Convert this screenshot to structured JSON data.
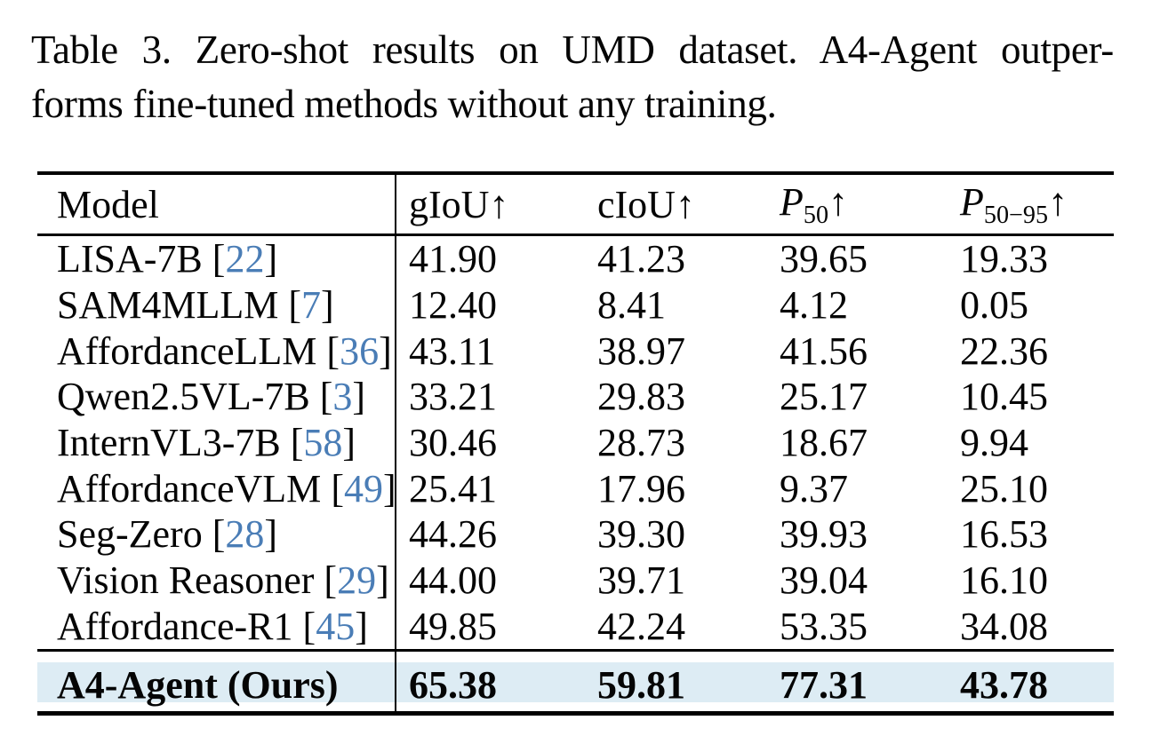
{
  "caption": {
    "line1": "Table 3. Zero-shot results on UMD dataset. A4-Agent outper-",
    "line2": "forms fine-tuned methods without any training."
  },
  "table": {
    "columns": {
      "model": "Model",
      "giou": "gIoU↑",
      "ciou": "cIoU↑",
      "p50": {
        "base": "P",
        "sub": "50",
        "arrow": "↑"
      },
      "p5095": {
        "base": "P",
        "sub": "50−95",
        "arrow": "↑"
      }
    },
    "cite_prefix": " [",
    "cite_suffix": "]",
    "rows": [
      {
        "model": "LISA-7B",
        "cite": "22",
        "giou": "41.90",
        "ciou": "41.23",
        "p50": "39.65",
        "p5095": "19.33"
      },
      {
        "model": "SAM4MLLM",
        "cite": "7",
        "giou": "12.40",
        "ciou": "8.41",
        "p50": "4.12",
        "p5095": "0.05"
      },
      {
        "model": "AffordanceLLM",
        "cite": "36",
        "giou": "43.11",
        "ciou": "38.97",
        "p50": "41.56",
        "p5095": "22.36"
      },
      {
        "model": "Qwen2.5VL-7B",
        "cite": "3",
        "giou": "33.21",
        "ciou": "29.83",
        "p50": "25.17",
        "p5095": "10.45"
      },
      {
        "model": "InternVL3-7B",
        "cite": "58",
        "giou": "30.46",
        "ciou": "28.73",
        "p50": "18.67",
        "p5095": "9.94"
      },
      {
        "model": "AffordanceVLM",
        "cite": "49",
        "giou": "25.41",
        "ciou": "17.96",
        "p50": "9.37",
        "p5095": "25.10"
      },
      {
        "model": "Seg-Zero",
        "cite": "28",
        "giou": "44.26",
        "ciou": "39.30",
        "p50": "39.93",
        "p5095": "16.53"
      },
      {
        "model": "Vision Reasoner",
        "cite": "29",
        "giou": "44.00",
        "ciou": "39.71",
        "p50": "39.04",
        "p5095": "16.10"
      },
      {
        "model": "Affordance-R1",
        "cite": "45",
        "giou": "49.85",
        "ciou": "42.24",
        "p50": "53.35",
        "p5095": "34.08"
      }
    ],
    "highlight_row": {
      "model": "A4-Agent (Ours)",
      "giou": "65.38",
      "ciou": "59.81",
      "p50": "77.31",
      "p5095": "43.78"
    }
  },
  "colors": {
    "citation": "#4a7db6",
    "highlight_bg": "#ddecf4",
    "rule": "#000000",
    "text": "#050505"
  }
}
